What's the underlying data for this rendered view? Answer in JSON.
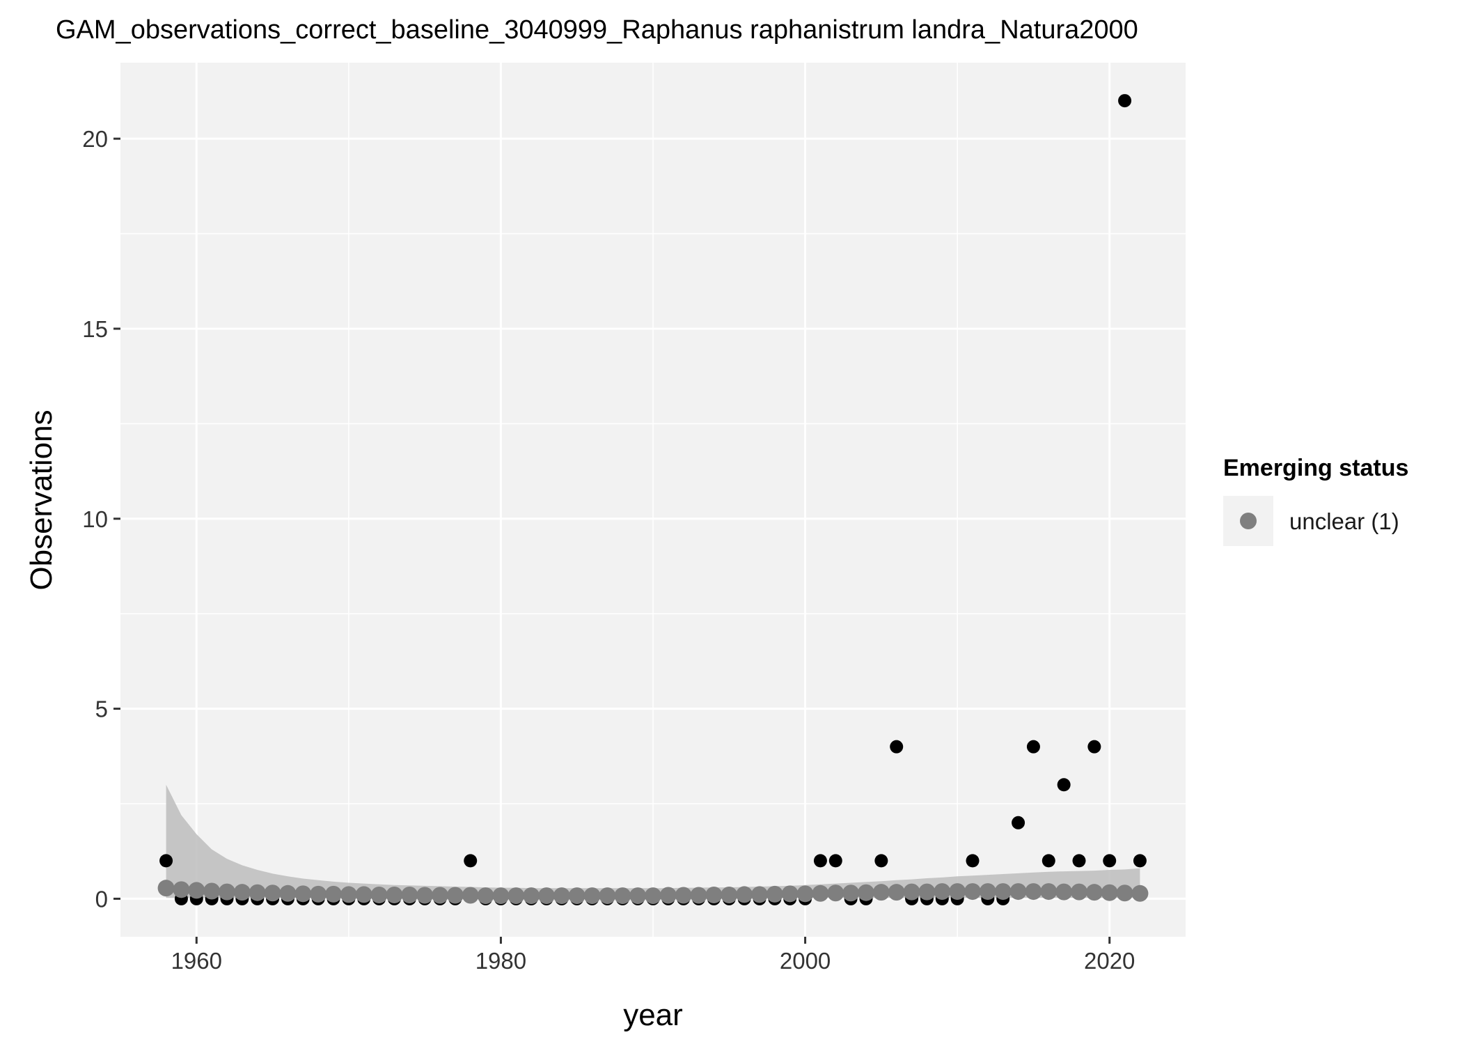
{
  "chart_data": {
    "type": "scatter",
    "title": "GAM_observations_correct_baseline_3040999_Raphanus raphanistrum landra_Natura2000",
    "xlabel": "year",
    "ylabel": "Observations",
    "xlim": [
      1955,
      2025
    ],
    "ylim": [
      -1,
      22
    ],
    "x_ticks": [
      1960,
      1980,
      2000,
      2020
    ],
    "y_ticks": [
      0,
      5,
      10,
      15,
      20
    ],
    "grid": true,
    "legend": {
      "title": "Emerging status",
      "placement": "right",
      "entries": [
        {
          "label": "unclear (1)",
          "color": "#7f7f7f"
        }
      ]
    },
    "colors": {
      "panel": "#f2f2f2",
      "grid": "#ffffff",
      "observed": "#000000",
      "fitted": "#7f7f7f",
      "ribbon": "#bdbdbd"
    },
    "observed": {
      "x": [
        1958,
        1959,
        1960,
        1961,
        1962,
        1963,
        1964,
        1965,
        1966,
        1967,
        1968,
        1969,
        1970,
        1971,
        1972,
        1973,
        1974,
        1975,
        1976,
        1977,
        1978,
        1979,
        1980,
        1981,
        1982,
        1983,
        1984,
        1985,
        1986,
        1987,
        1988,
        1989,
        1990,
        1991,
        1992,
        1993,
        1994,
        1995,
        1996,
        1997,
        1998,
        1999,
        2000,
        2001,
        2002,
        2003,
        2004,
        2005,
        2006,
        2007,
        2008,
        2009,
        2010,
        2011,
        2012,
        2013,
        2014,
        2015,
        2016,
        2017,
        2018,
        2019,
        2020,
        2021,
        2022
      ],
      "y": [
        1,
        0,
        0,
        0,
        0,
        0,
        0,
        0,
        0,
        0,
        0,
        0,
        0,
        0,
        0,
        0,
        0,
        0,
        0,
        0,
        1,
        0,
        0,
        0,
        0,
        0,
        0,
        0,
        0,
        0,
        0,
        0,
        0,
        0,
        0,
        0,
        0,
        0,
        0,
        0,
        0,
        0,
        0,
        1,
        1,
        0,
        0,
        1,
        4,
        0,
        0,
        0,
        0,
        1,
        0,
        0,
        2,
        4,
        1,
        3,
        1,
        4,
        1,
        21,
        1
      ]
    },
    "fitted": {
      "name": "unclear (1)",
      "x": [
        1958,
        1959,
        1960,
        1961,
        1962,
        1963,
        1964,
        1965,
        1966,
        1967,
        1968,
        1969,
        1970,
        1971,
        1972,
        1973,
        1974,
        1975,
        1976,
        1977,
        1978,
        1979,
        1980,
        1981,
        1982,
        1983,
        1984,
        1985,
        1986,
        1987,
        1988,
        1989,
        1990,
        1991,
        1992,
        1993,
        1994,
        1995,
        1996,
        1997,
        1998,
        1999,
        2000,
        2001,
        2002,
        2003,
        2004,
        2005,
        2006,
        2007,
        2008,
        2009,
        2010,
        2011,
        2012,
        2013,
        2014,
        2015,
        2016,
        2017,
        2018,
        2019,
        2020,
        2021,
        2022
      ],
      "y": [
        0.28,
        0.24,
        0.22,
        0.2,
        0.18,
        0.17,
        0.16,
        0.15,
        0.14,
        0.13,
        0.12,
        0.12,
        0.11,
        0.11,
        0.1,
        0.1,
        0.1,
        0.09,
        0.09,
        0.09,
        0.09,
        0.08,
        0.08,
        0.08,
        0.08,
        0.08,
        0.08,
        0.08,
        0.08,
        0.08,
        0.08,
        0.08,
        0.08,
        0.09,
        0.09,
        0.09,
        0.1,
        0.1,
        0.11,
        0.11,
        0.12,
        0.13,
        0.13,
        0.14,
        0.15,
        0.15,
        0.16,
        0.17,
        0.17,
        0.18,
        0.18,
        0.19,
        0.19,
        0.19,
        0.19,
        0.19,
        0.19,
        0.19,
        0.19,
        0.18,
        0.18,
        0.17,
        0.16,
        0.15,
        0.14
      ],
      "lower": [
        0.02,
        0.02,
        0.02,
        0.02,
        0.02,
        0.02,
        0.02,
        0.02,
        0.02,
        0.02,
        0.02,
        0.02,
        0.02,
        0.02,
        0.02,
        0.02,
        0.02,
        0.02,
        0.02,
        0.02,
        0.02,
        0.02,
        0.02,
        0.02,
        0.02,
        0.02,
        0.02,
        0.02,
        0.02,
        0.02,
        0.02,
        0.02,
        0.02,
        0.02,
        0.02,
        0.02,
        0.02,
        0.02,
        0.02,
        0.02,
        0.02,
        0.02,
        0.02,
        0.02,
        0.02,
        0.02,
        0.02,
        0.02,
        0.02,
        0.02,
        0.02,
        0.02,
        0.02,
        0.02,
        0.02,
        0.02,
        0.02,
        0.02,
        0.02,
        0.02,
        0.02,
        0.02,
        0.02,
        0.02,
        0.02
      ],
      "upper": [
        3.0,
        2.2,
        1.7,
        1.3,
        1.05,
        0.88,
        0.76,
        0.66,
        0.59,
        0.53,
        0.49,
        0.45,
        0.42,
        0.4,
        0.38,
        0.36,
        0.35,
        0.34,
        0.33,
        0.32,
        0.31,
        0.3,
        0.29,
        0.29,
        0.28,
        0.28,
        0.28,
        0.28,
        0.28,
        0.28,
        0.28,
        0.28,
        0.28,
        0.28,
        0.29,
        0.29,
        0.3,
        0.3,
        0.31,
        0.32,
        0.33,
        0.34,
        0.36,
        0.38,
        0.4,
        0.42,
        0.44,
        0.46,
        0.49,
        0.51,
        0.54,
        0.56,
        0.59,
        0.61,
        0.63,
        0.65,
        0.67,
        0.69,
        0.71,
        0.72,
        0.73,
        0.74,
        0.76,
        0.77,
        0.8
      ]
    }
  }
}
